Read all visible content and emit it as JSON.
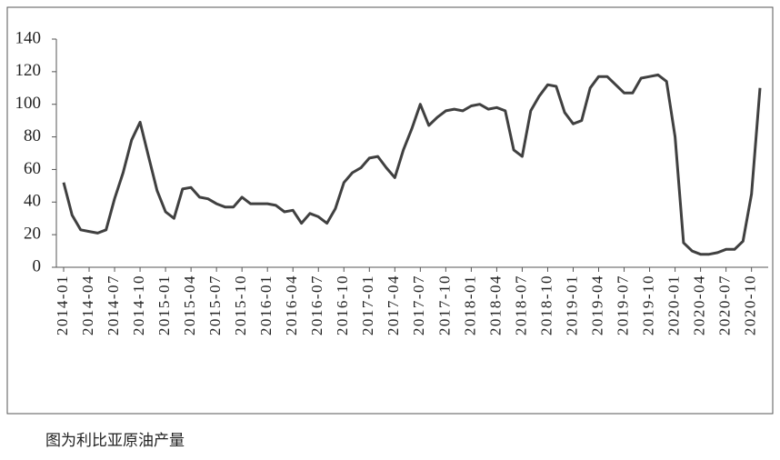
{
  "chart_data": {
    "type": "line",
    "caption": "图为利比亚原油产量",
    "categories": [
      "2014-01",
      null,
      null,
      "2014-04",
      null,
      null,
      "2014-07",
      null,
      null,
      "2014-10",
      null,
      null,
      "2015-01",
      null,
      null,
      "2015-04",
      null,
      null,
      "2015-07",
      null,
      null,
      "2015-10",
      null,
      null,
      "2016-01",
      null,
      null,
      "2016-04",
      null,
      null,
      "2016-07",
      null,
      null,
      "2016-10",
      null,
      null,
      "2017-01",
      null,
      null,
      "2017-04",
      null,
      null,
      "2017-07",
      null,
      null,
      "2017-10",
      null,
      null,
      "2018-01",
      null,
      null,
      "2018-04",
      null,
      null,
      "2018-07",
      null,
      null,
      "2018-10",
      null,
      null,
      "2019-01",
      null,
      null,
      "2019-04",
      null,
      null,
      "2019-07",
      null,
      null,
      "2019-10",
      null,
      null,
      "2020-01",
      null,
      null,
      "2020-04",
      null,
      null,
      "2020-07",
      null,
      null,
      "2020-10",
      null
    ],
    "values": [
      52,
      32,
      23,
      22,
      21,
      23,
      42,
      58,
      78,
      89,
      68,
      47,
      34,
      30,
      48,
      49,
      43,
      42,
      39,
      37,
      37,
      43,
      39,
      39,
      39,
      38,
      34,
      35,
      27,
      33,
      31,
      27,
      36,
      52,
      58,
      61,
      67,
      68,
      61,
      55,
      72,
      85,
      100,
      87,
      92,
      96,
      97,
      96,
      99,
      100,
      97,
      98,
      96,
      72,
      68,
      96,
      105,
      112,
      111,
      95,
      88,
      90,
      110,
      117,
      117,
      112,
      107,
      107,
      116,
      117,
      118,
      114,
      80,
      15,
      10,
      8,
      8,
      9,
      11,
      11,
      16,
      45,
      110
    ],
    "color": "#404040",
    "ylim": [
      0,
      140
    ],
    "yticks": [
      0,
      20,
      40,
      60,
      80,
      100,
      120,
      140
    ]
  }
}
